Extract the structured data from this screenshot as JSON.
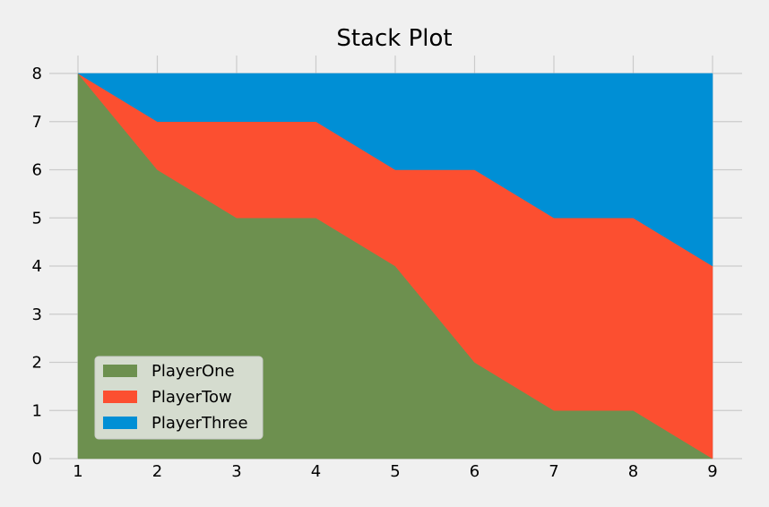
{
  "chart_data": {
    "type": "area",
    "stacked": true,
    "title": "Stack Plot",
    "xlabel": "",
    "ylabel": "",
    "x": [
      1,
      2,
      3,
      4,
      5,
      6,
      7,
      8,
      9
    ],
    "xlim": [
      1,
      9
    ],
    "ylim": [
      0,
      8
    ],
    "x_ticks": [
      "1",
      "2",
      "3",
      "4",
      "5",
      "6",
      "7",
      "8",
      "9"
    ],
    "y_ticks": [
      "0",
      "1",
      "2",
      "3",
      "4",
      "5",
      "6",
      "7",
      "8"
    ],
    "grid": true,
    "legend_position": "lower-left",
    "series": [
      {
        "name": "PlayerOne",
        "color": "#6d904f",
        "values": [
          8,
          6,
          5,
          5,
          4,
          2,
          1,
          1,
          0
        ]
      },
      {
        "name": "PlayerTow",
        "color": "#fc4f30",
        "values": [
          0,
          1,
          2,
          2,
          2,
          4,
          4,
          4,
          4
        ]
      },
      {
        "name": "PlayerThree",
        "color": "#008fd5",
        "values": [
          0,
          1,
          1,
          1,
          2,
          2,
          3,
          3,
          4
        ]
      }
    ]
  },
  "colors": {
    "background": "#f0f0f0",
    "grid": "#cbcbcb",
    "legend_background": "#d5dccf"
  }
}
